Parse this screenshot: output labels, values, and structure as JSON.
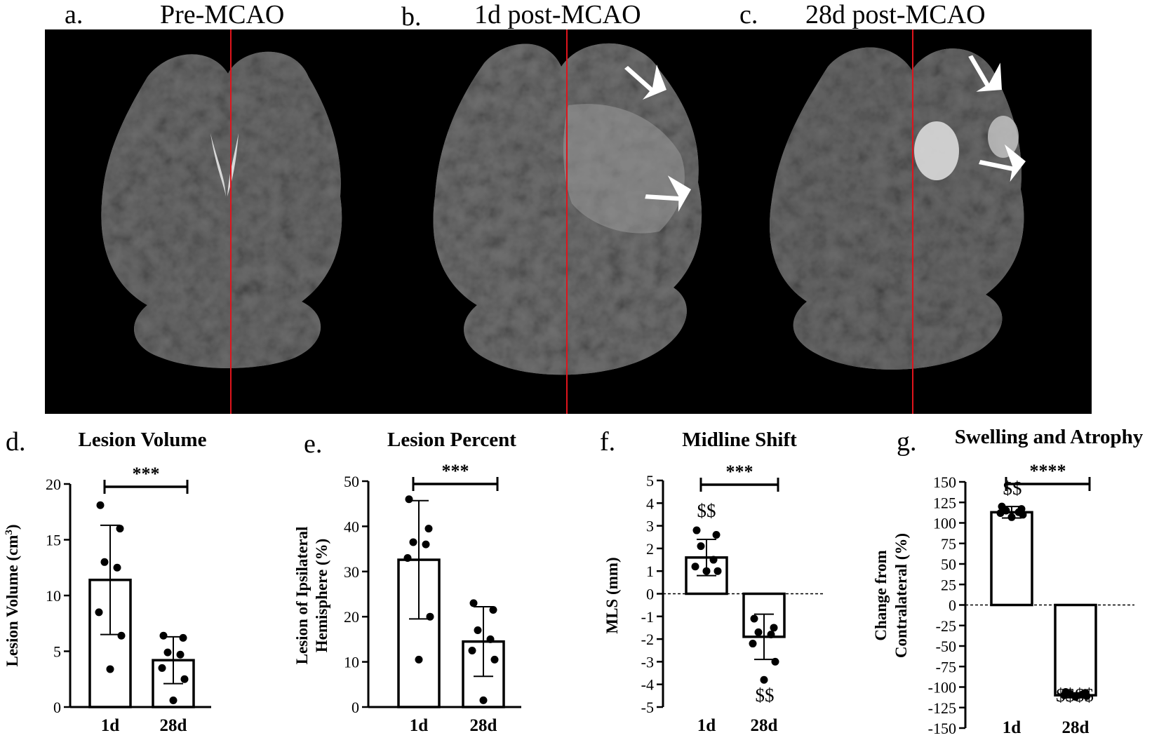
{
  "panels_top": [
    {
      "letter": "a.",
      "title": "Pre-MCAO"
    },
    {
      "letter": "b.",
      "title": "1d post-MCAO"
    },
    {
      "letter": "c.",
      "title": "28d post-MCAO"
    }
  ],
  "colors": {
    "midline": "#e0141c",
    "background": "#000000",
    "tissue": "#6e6e6e",
    "arrow": "#ffffff"
  },
  "icons": [
    "arrow-icon"
  ],
  "chart_data": [
    {
      "type": "bar",
      "panel": "d.",
      "title": "Lesion Volume",
      "ylabel": "Lesion Volume (cm",
      "ylabel_sup": "3",
      "ylabel_end": ")",
      "categories": [
        "1d",
        "28d"
      ],
      "values": [
        11.4,
        4.2
      ],
      "sd": [
        4.9,
        2.1
      ],
      "points": [
        [
          18.1,
          16.0,
          13.0,
          12.5,
          8.5,
          6.4,
          3.4
        ],
        [
          6.4,
          6.2,
          4.9,
          4.7,
          3.5,
          2.5,
          0.6
        ]
      ],
      "yticks": [
        "0",
        "5",
        "10",
        "15",
        "20"
      ],
      "ylim": [
        0,
        20
      ],
      "significance": "***",
      "annotations": []
    },
    {
      "type": "bar",
      "panel": "e.",
      "title": "Lesion Percent",
      "ylabel": "Lesion of Ipsilateral",
      "ylabel2": "Hemisphere (%)",
      "categories": [
        "1d",
        "28d"
      ],
      "values": [
        32.6,
        14.5
      ],
      "sd": [
        13.1,
        7.7
      ],
      "points": [
        [
          46.0,
          39.5,
          36.5,
          36.0,
          33.0,
          20.0,
          10.5
        ],
        [
          23.0,
          21.5,
          17.0,
          15.0,
          12.5,
          10.5,
          1.5
        ]
      ],
      "yticks": [
        "0",
        "10",
        "20",
        "30",
        "40",
        "50"
      ],
      "ylim": [
        0,
        50
      ],
      "significance": "***",
      "annotations": []
    },
    {
      "type": "bar",
      "panel": "f.",
      "title": "Midline Shift",
      "ylabel": "MLS (mm)",
      "categories": [
        "1d",
        "28d"
      ],
      "values": [
        1.6,
        -1.9
      ],
      "sd": [
        0.8,
        1.0
      ],
      "points": [
        [
          2.8,
          2.6,
          2.1,
          1.5,
          1.2,
          1.0,
          1.0
        ],
        [
          -1.1,
          -1.5,
          -1.7,
          -1.8,
          -2.2,
          -3.0,
          -3.8
        ]
      ],
      "yticks": [
        "5",
        "4",
        "3",
        "2",
        "1",
        "0",
        "-1",
        "-2",
        "-3",
        "-4",
        "-5"
      ],
      "ylim": [
        -5,
        5
      ],
      "significance": "***",
      "annotations": [
        "$$",
        "$$"
      ]
    },
    {
      "type": "bar",
      "panel": "g.",
      "title": "Swelling and Atrophy",
      "ylabel": "Change from",
      "ylabel2": "Contralateral (%)",
      "categories": [
        "1d",
        "28d"
      ],
      "values": [
        113,
        -110
      ],
      "sd": [
        7,
        3
      ],
      "points": [
        [
          120,
          117,
          115,
          113,
          112,
          110,
          107
        ],
        [
          -106,
          -107,
          -108,
          -109,
          -110,
          -111,
          -112
        ]
      ],
      "yticks": [
        "150",
        "125",
        "100",
        "75",
        "50",
        "25",
        "0",
        "-25",
        "-50",
        "-75",
        "-100",
        "-125",
        "-150"
      ],
      "ylim": [
        -150,
        150
      ],
      "significance": "****",
      "annotations": [
        "$$",
        "$$$$"
      ]
    }
  ]
}
